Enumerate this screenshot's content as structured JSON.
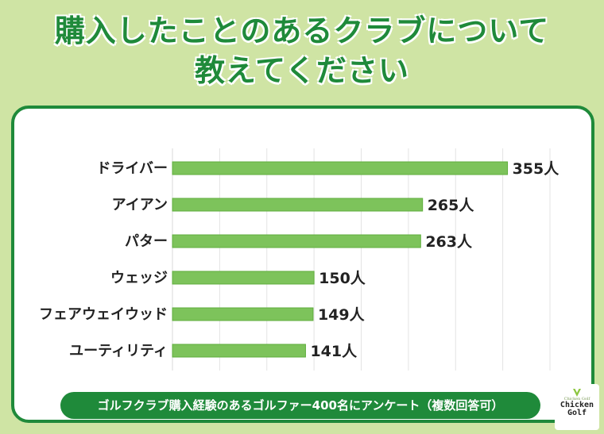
{
  "title": {
    "line1": "購入したことのあるクラブについて",
    "line2": "教えてください"
  },
  "chart_data": {
    "type": "bar",
    "orientation": "horizontal",
    "categories": [
      "ドライバー",
      "アイアン",
      "パター",
      "ウェッジ",
      "フェアウェイウッド",
      "ユーティリティ"
    ],
    "values": [
      355,
      265,
      263,
      150,
      149,
      141
    ],
    "value_suffix": "人",
    "xlim": [
      0,
      400
    ],
    "grid": true,
    "bar_color": "#7dc35b"
  },
  "footer": "ゴルフクラブ購入経験のあるゴルファー400名にアンケート（複数回答可）",
  "logo": {
    "script": "Chicken Golf",
    "line1": "Chicken",
    "line2": "Golf"
  },
  "colors": {
    "background": "#cfe4a4",
    "accent": "#1f8a3a",
    "bar": "#7dc35b"
  }
}
